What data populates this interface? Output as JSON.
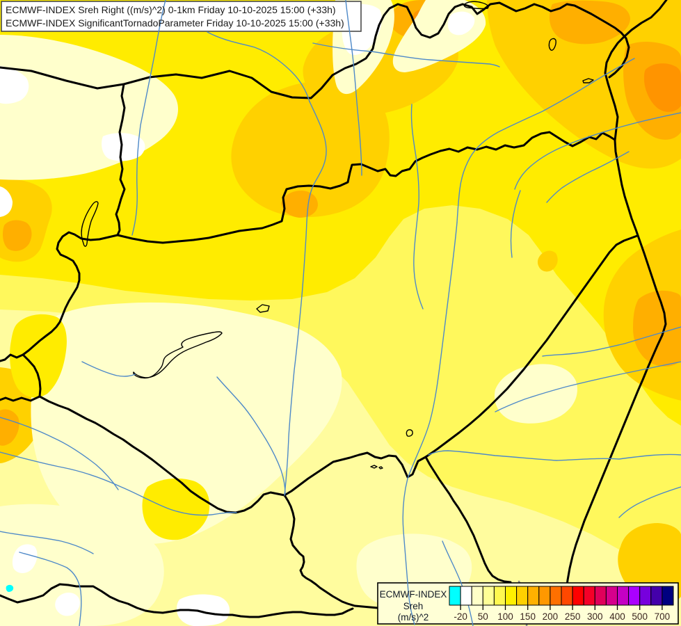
{
  "title": {
    "line1": "ECMWF-INDEX Sreh Right ((m/s)^2) 0-1km Friday 10-10-2025 15:00 (+33h)",
    "line2": "ECMWF-INDEX SignificantTornadoParameter Friday 10-10-2025 15:00 (+33h)"
  },
  "legend": {
    "title": "ECMWF-INDEX",
    "param": "Sreh",
    "unit": "(m/s)^2",
    "ticks": [
      "-20",
      "50",
      "100",
      "150",
      "200",
      "250",
      "300",
      "400",
      "500",
      "700"
    ],
    "palette": [
      "#00FFFF",
      "#FFFFFF",
      "#FFFFC8",
      "#FFFF96",
      "#FFF850",
      "#FFF000",
      "#FFD000",
      "#FFB000",
      "#FF9800",
      "#FF7000",
      "#FF4800",
      "#FF0000",
      "#F50028",
      "#E0005A",
      "#D6008C",
      "#C400C4",
      "#AA00FF",
      "#7700DD",
      "#4400AA",
      "#000080"
    ]
  },
  "map_colors": {
    "base_yellow": "#FFEC00",
    "light_yellow": "#FFF85C",
    "pale_yellow": "#FFFC9E",
    "cream": "#FFFFCC",
    "white": "#FFFFFF",
    "gold": "#FFD100",
    "orange": "#FFAF00",
    "deep_orange": "#FF9400",
    "cyan": "#00FFFF",
    "river_blue": "#4E89C8",
    "border_black": "#000000"
  }
}
